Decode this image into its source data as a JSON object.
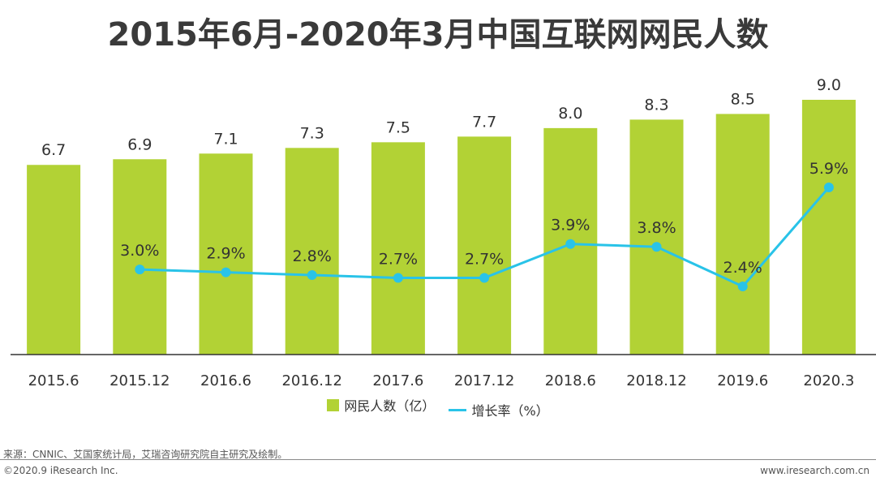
{
  "title": "2015年6月-2020年3月中国互联网网民人数",
  "chart_data": {
    "type": "bar",
    "categories": [
      "2015.6",
      "2015.12",
      "2016.6",
      "2016.12",
      "2017.6",
      "2017.12",
      "2018.6",
      "2018.12",
      "2019.6",
      "2020.3"
    ],
    "series": [
      {
        "name": "网民人数（亿）",
        "type": "bar",
        "values": [
          6.7,
          6.9,
          7.1,
          7.3,
          7.5,
          7.7,
          8.0,
          8.3,
          8.5,
          9.0
        ],
        "color": "#b2d235"
      },
      {
        "name": "增长率（%）",
        "type": "line",
        "values": [
          null,
          3.0,
          2.9,
          2.8,
          2.7,
          2.7,
          3.9,
          3.8,
          2.4,
          5.9
        ],
        "labels": [
          "",
          "3.0%",
          "2.9%",
          "2.8%",
          "2.7%",
          "2.7%",
          "3.9%",
          "3.8%",
          "2.4%",
          "5.9%"
        ],
        "color": "#29c3e8"
      }
    ],
    "bar_labels": [
      "6.7",
      "6.9",
      "7.1",
      "7.3",
      "7.5",
      "7.7",
      "8.0",
      "8.3",
      "8.5",
      "9.0"
    ],
    "legend_position": "bottom"
  },
  "legend": {
    "bar_label": "网民人数（亿）",
    "line_label": "增长率（%）"
  },
  "footer": {
    "source": "来源：CNNIC、艾国家统计局，艾瑞咨询研究院自主研究及绘制。",
    "copyright": "©2020.9 iResearch Inc.",
    "site": "www.iresearch.com.cn"
  }
}
